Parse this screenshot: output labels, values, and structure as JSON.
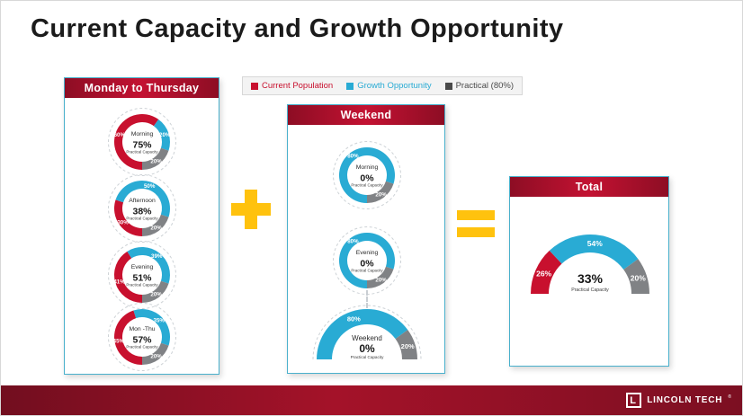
{
  "page": {
    "title": "Current Capacity and Growth Opportunity"
  },
  "legend": {
    "items": [
      {
        "label": "Current Population",
        "color": "#C8102E",
        "series": "current"
      },
      {
        "label": "Growth Opportunity",
        "color": "#29ABD4",
        "series": "growth"
      },
      {
        "label": "Practical (80%)",
        "color": "#4A4A4A",
        "series": "practical"
      }
    ]
  },
  "panels": {
    "monday_thursday": {
      "title": "Monday to Thursday"
    },
    "weekend": {
      "title": "Weekend"
    },
    "total": {
      "title": "Total"
    }
  },
  "operators": {
    "plus": "+",
    "equals": "="
  },
  "series_colors": {
    "current": "#C8102E",
    "growth": "#29ABD4",
    "practical": "#808285"
  },
  "colors": {
    "accent_yellow": "#FFC20E",
    "header_red": "#B01030",
    "panel_border": "#49B0CC",
    "footer_red": "#8E1023"
  },
  "chart_data": [
    {
      "id": "mon-thu-morning",
      "type": "donut",
      "panel": "Monday to Thursday",
      "segments": [
        {
          "series": "current",
          "value": 60,
          "label": "60%"
        },
        {
          "series": "growth",
          "value": 20,
          "label": "20%"
        },
        {
          "series": "practical",
          "value": 20,
          "label": "20%"
        }
      ],
      "center": {
        "title": "Morning",
        "value": "75%",
        "caption": "Practical Capacity"
      }
    },
    {
      "id": "mon-thu-afternoon",
      "type": "donut",
      "panel": "Monday to Thursday",
      "segments": [
        {
          "series": "current",
          "value": 30,
          "label": "30%"
        },
        {
          "series": "growth",
          "value": 50,
          "label": "50%"
        },
        {
          "series": "practical",
          "value": 20,
          "label": "20%"
        }
      ],
      "center": {
        "title": "Afternoon",
        "value": "38%",
        "caption": "Practical Capacity"
      }
    },
    {
      "id": "mon-thu-evening",
      "type": "donut",
      "panel": "Monday to Thursday",
      "segments": [
        {
          "series": "current",
          "value": 41,
          "label": "41%"
        },
        {
          "series": "growth",
          "value": 39,
          "label": "39%"
        },
        {
          "series": "practical",
          "value": 20,
          "label": "20%"
        }
      ],
      "center": {
        "title": "Evening",
        "value": "51%",
        "caption": "Practical Capacity"
      }
    },
    {
      "id": "mon-thu-total",
      "type": "donut",
      "panel": "Monday to Thursday",
      "segments": [
        {
          "series": "current",
          "value": 45,
          "label": "45%"
        },
        {
          "series": "growth",
          "value": 35,
          "label": "35%"
        },
        {
          "series": "practical",
          "value": 20,
          "label": "20%"
        }
      ],
      "center": {
        "title": "Mon -Thu",
        "value": "57%",
        "caption": "Practical Capacity"
      }
    },
    {
      "id": "weekend-morning",
      "type": "donut",
      "panel": "Weekend",
      "segments": [
        {
          "series": "growth",
          "value": 80,
          "label": "80%"
        },
        {
          "series": "practical",
          "value": 20,
          "label": "20%"
        }
      ],
      "center": {
        "title": "Morning",
        "value": "0%",
        "caption": "Practical Capacity"
      }
    },
    {
      "id": "weekend-evening",
      "type": "donut",
      "panel": "Weekend",
      "segments": [
        {
          "series": "growth",
          "value": 80,
          "label": "80%"
        },
        {
          "series": "practical",
          "value": 20,
          "label": "20%"
        }
      ],
      "center": {
        "title": "Evening",
        "value": "0%",
        "caption": "Practical Capacity"
      }
    },
    {
      "id": "weekend-total",
      "type": "gauge",
      "panel": "Weekend",
      "segments": [
        {
          "series": "growth",
          "value": 80,
          "label": "80%"
        },
        {
          "series": "practical",
          "value": 20,
          "label": "20%"
        }
      ],
      "center": {
        "title": "Weekend",
        "value": "0%",
        "caption": "Practical Capacity"
      }
    },
    {
      "id": "grand-total",
      "type": "gauge",
      "panel": "Total",
      "segments": [
        {
          "series": "current",
          "value": 26,
          "label": "26%"
        },
        {
          "series": "growth",
          "value": 54,
          "label": "54%"
        },
        {
          "series": "practical",
          "value": 20,
          "label": "20%"
        }
      ],
      "center": {
        "value": "33%",
        "caption": "Practical Capacity"
      }
    }
  ],
  "footer": {
    "brand": "LINCOLN TECH",
    "reg": "®"
  }
}
